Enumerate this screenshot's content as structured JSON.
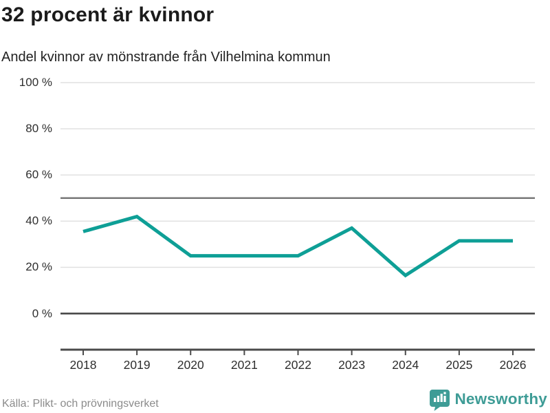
{
  "header": {
    "title": "32 procent är kvinnor",
    "subtitle": "Andel kvinnor av mönstrande från Vilhelmina kommun"
  },
  "chart_data": {
    "type": "line",
    "title": "Andel kvinnor av mönstrande från Vilhelmina kommun",
    "x": [
      2018,
      2019,
      2020,
      2021,
      2022,
      2023,
      2024,
      2025,
      2026
    ],
    "series": [
      {
        "name": "Andel kvinnor (%)",
        "values": [
          35.5,
          42,
          25,
          25,
          25,
          37,
          16.5,
          31.5,
          31.5
        ]
      }
    ],
    "xlabel": "",
    "ylabel": "",
    "ylim": [
      0,
      100
    ],
    "yticks": [
      100,
      80,
      60,
      40,
      20,
      0
    ],
    "ytick_labels": [
      "100 %",
      "80 %",
      "60 %",
      "40 %",
      "20 %",
      "0 %"
    ],
    "reference_lines": [
      50,
      0
    ],
    "grid": true,
    "legend": "none",
    "line_color": "#0E9F96",
    "grid_color": "#e1e1e1",
    "reference_line_color": "#787878",
    "zero_line_color": "#3f3f3f",
    "axis_color": "#4a4a4a"
  },
  "footer": {
    "source": "Källa: Plikt- och prövningsverket",
    "brand": "Newsworthy",
    "brand_color": "#3E9C96"
  }
}
